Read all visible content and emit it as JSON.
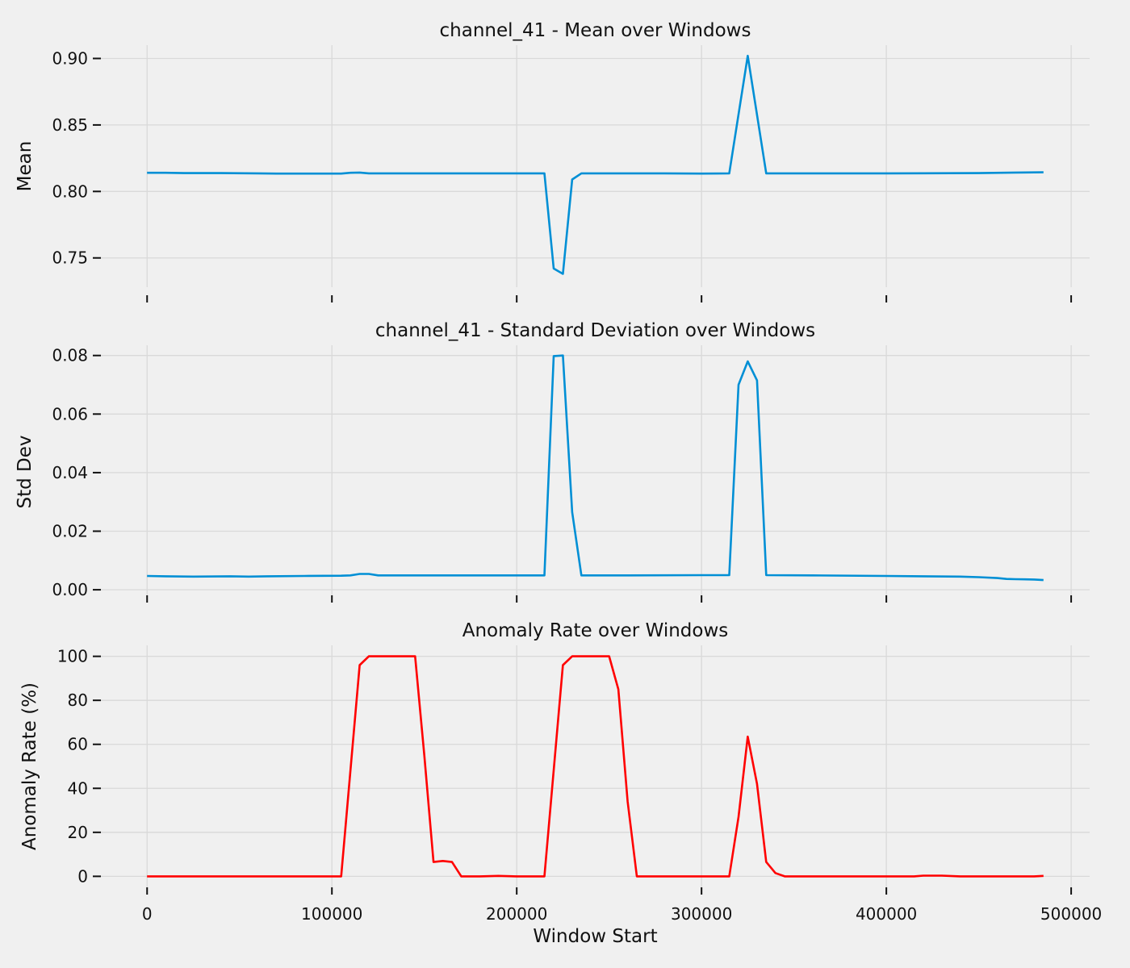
{
  "chart_data": [
    {
      "type": "line",
      "title": "channel_41 - Mean over Windows",
      "xlabel": "",
      "ylabel": "Mean",
      "xlim": [
        -25000,
        510000
      ],
      "ylim": [
        0.728,
        0.91
      ],
      "xticks": [
        0,
        100000,
        200000,
        300000,
        400000,
        500000
      ],
      "xtick_labels": [
        "",
        "",
        "",
        "",
        "",
        ""
      ],
      "yticks": [
        0.75,
        0.8,
        0.85,
        0.9
      ],
      "ytick_labels": [
        "0.75",
        "0.80",
        "0.85",
        "0.90"
      ],
      "grid": true,
      "series": [
        {
          "color": "#008fd5",
          "x": [
            0,
            10000,
            20000,
            40000,
            60000,
            70000,
            90000,
            105000,
            110000,
            115000,
            120000,
            150000,
            180000,
            200000,
            215000,
            220000,
            225000,
            230000,
            235000,
            250000,
            280000,
            300000,
            315000,
            325000,
            335000,
            350000,
            400000,
            450000,
            470000,
            485000
          ],
          "y": [
            0.814,
            0.814,
            0.8138,
            0.8138,
            0.8136,
            0.8134,
            0.8134,
            0.8134,
            0.814,
            0.8142,
            0.8136,
            0.8136,
            0.8136,
            0.8136,
            0.8136,
            0.742,
            0.738,
            0.809,
            0.8136,
            0.8136,
            0.8136,
            0.8134,
            0.8136,
            0.902,
            0.8136,
            0.8136,
            0.8136,
            0.8138,
            0.8142,
            0.8144
          ]
        }
      ]
    },
    {
      "type": "line",
      "title": "channel_41 - Standard Deviation over Windows",
      "xlabel": "",
      "ylabel": "Std Dev",
      "xlim": [
        -25000,
        510000
      ],
      "ylim": [
        -0.003,
        0.0835
      ],
      "xticks": [
        0,
        100000,
        200000,
        300000,
        400000,
        500000
      ],
      "xtick_labels": [
        "",
        "",
        "",
        "",
        "",
        ""
      ],
      "yticks": [
        0.0,
        0.02,
        0.04,
        0.06,
        0.08
      ],
      "ytick_labels": [
        "0.00",
        "0.02",
        "0.04",
        "0.06",
        "0.08"
      ],
      "grid": true,
      "series": [
        {
          "color": "#008fd5",
          "x": [
            0,
            10000,
            25000,
            45000,
            55000,
            65000,
            85000,
            105000,
            110000,
            115000,
            120000,
            125000,
            150000,
            200000,
            215000,
            220000,
            225000,
            230000,
            235000,
            260000,
            300000,
            315000,
            320000,
            325000,
            330000,
            335000,
            360000,
            400000,
            420000,
            440000,
            450000,
            460000,
            465000,
            470000,
            480000,
            485000
          ],
          "y": [
            0.0047,
            0.0046,
            0.0045,
            0.0046,
            0.0045,
            0.0046,
            0.0047,
            0.0048,
            0.0049,
            0.0054,
            0.0054,
            0.0049,
            0.0049,
            0.0049,
            0.0049,
            0.0798,
            0.08,
            0.0265,
            0.0049,
            0.0049,
            0.005,
            0.005,
            0.07,
            0.078,
            0.0715,
            0.005,
            0.0049,
            0.0047,
            0.0046,
            0.0045,
            0.0043,
            0.004,
            0.0037,
            0.0036,
            0.0035,
            0.0033
          ]
        }
      ]
    },
    {
      "type": "line",
      "title": "Anomaly Rate over Windows",
      "xlabel": "Window Start",
      "ylabel": "Anomaly Rate (%)",
      "xlim": [
        -25000,
        510000
      ],
      "ylim": [
        -5,
        105
      ],
      "xticks": [
        0,
        100000,
        200000,
        300000,
        400000,
        500000
      ],
      "xtick_labels": [
        "0",
        "100000",
        "200000",
        "300000",
        "400000",
        "500000"
      ],
      "yticks": [
        0,
        20,
        40,
        60,
        80,
        100
      ],
      "ytick_labels": [
        "0",
        "20",
        "40",
        "60",
        "80",
        "100"
      ],
      "grid": true,
      "series": [
        {
          "color": "#ff0000",
          "x": [
            0,
            100000,
            105000,
            115000,
            120000,
            125000,
            145000,
            150000,
            155000,
            160000,
            165000,
            170000,
            180000,
            190000,
            200000,
            215000,
            225000,
            230000,
            235000,
            245000,
            250000,
            255000,
            260000,
            265000,
            280000,
            300000,
            315000,
            320000,
            325000,
            330000,
            335000,
            340000,
            345000,
            360000,
            400000,
            415000,
            420000,
            430000,
            440000,
            480000,
            485000
          ],
          "y": [
            0,
            0,
            0,
            96,
            100,
            100,
            100,
            55,
            6.5,
            7,
            6.5,
            0,
            0,
            0.2,
            0,
            0,
            96,
            100,
            100,
            100,
            100,
            85,
            34,
            0,
            0,
            0,
            0,
            27,
            63.5,
            42,
            6.5,
            1.5,
            0,
            0,
            0,
            0,
            0.3,
            0.3,
            0,
            0,
            0.2
          ]
        }
      ]
    }
  ]
}
